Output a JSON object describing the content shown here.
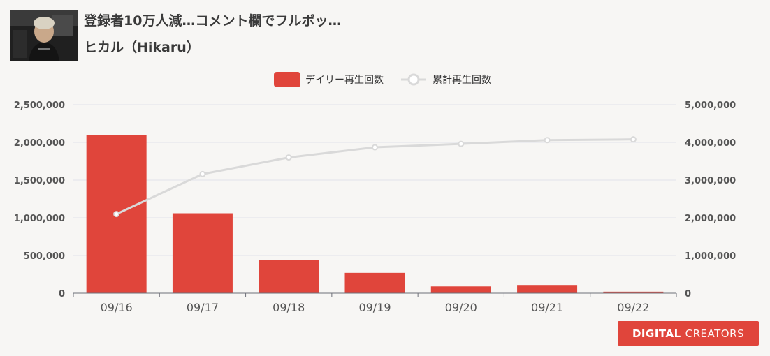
{
  "video": {
    "title": "登録者10万人減…コメント欄でフルボッ…",
    "channel": "ヒカル（Hikaru）"
  },
  "brand": {
    "logo_strong": "DIGITAL",
    "logo_thin": "CREATORS",
    "color": "#e0453b"
  },
  "chart_data": {
    "type": "bar",
    "categories": [
      "09/16",
      "09/17",
      "09/18",
      "09/19",
      "09/20",
      "09/21",
      "09/22"
    ],
    "series": [
      {
        "name": "デイリー再生回数",
        "type": "bar",
        "axis": "left",
        "color": "#e0453b",
        "values": [
          2100000,
          1060000,
          440000,
          270000,
          90000,
          100000,
          20000
        ]
      },
      {
        "name": "累計再生回数",
        "type": "line",
        "axis": "right",
        "color": "#d9d9d9",
        "values": [
          2100000,
          3160000,
          3600000,
          3870000,
          3960000,
          4060000,
          4080000
        ]
      }
    ],
    "ylim_left": [
      0,
      2500000
    ],
    "ylim_right": [
      0,
      5000000
    ],
    "yticks_left": [
      "0",
      "500,000",
      "1,000,000",
      "1,500,000",
      "2,000,000",
      "2,500,000"
    ],
    "yticks_right": [
      "0",
      "1,000,000",
      "2,000,000",
      "3,000,000",
      "4,000,000",
      "5,000,000"
    ],
    "grid": true,
    "legend": "top-center"
  }
}
